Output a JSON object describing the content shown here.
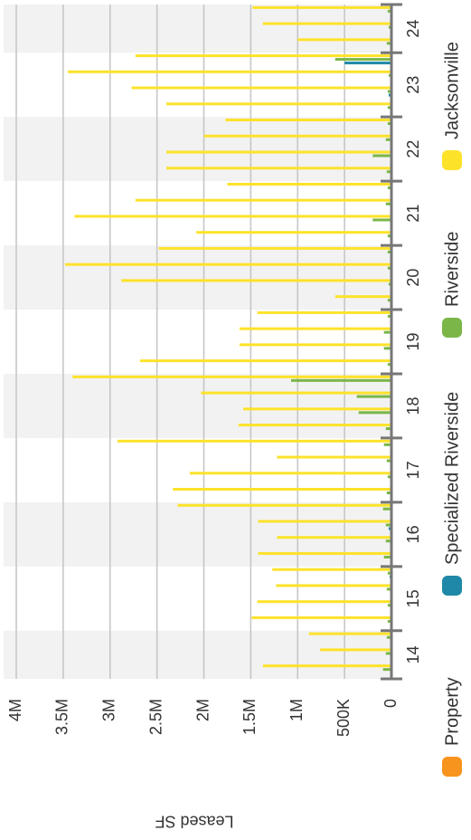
{
  "chart_data": {
    "type": "bar",
    "y_label": "Leased SF",
    "categories": [
      "14",
      "14",
      "14",
      "15",
      "15",
      "15",
      "15",
      "16",
      "16",
      "16",
      "16",
      "17",
      "17",
      "17",
      "17",
      "18",
      "18",
      "18",
      "18",
      "19",
      "19",
      "19",
      "19",
      "20",
      "20",
      "20",
      "20",
      "21",
      "21",
      "21",
      "21",
      "22",
      "22",
      "22",
      "22",
      "23",
      "23",
      "23",
      "23",
      "24",
      "24",
      "24"
    ],
    "series": [
      {
        "name": "Property",
        "color": "#f7941d",
        "values": [
          0,
          0,
          0,
          0,
          0,
          0,
          0,
          0,
          0,
          0,
          0,
          0,
          0,
          0,
          0,
          0,
          0,
          0,
          0,
          0,
          0,
          0,
          0,
          0,
          0,
          0,
          0,
          0,
          0,
          0,
          0,
          0,
          0,
          0,
          0,
          0,
          0,
          0,
          0,
          0,
          0,
          0
        ]
      },
      {
        "name": "Specialized Riverside",
        "color": "#1f88a8",
        "values": [
          0,
          0,
          0,
          0,
          0,
          0,
          20000,
          0,
          0,
          30000,
          0,
          0,
          0,
          0,
          0,
          0,
          0,
          0,
          0,
          0,
          0,
          0,
          0,
          0,
          0,
          0,
          0,
          0,
          0,
          0,
          0,
          0,
          0,
          0,
          0,
          0,
          30000,
          0,
          500000,
          0,
          0,
          0
        ]
      },
      {
        "name": "Riverside",
        "color": "#7ab648",
        "values": [
          90000,
          60000,
          50000,
          40000,
          40000,
          50000,
          40000,
          80000,
          60000,
          60000,
          90000,
          50000,
          40000,
          50000,
          80000,
          60000,
          350000,
          370000,
          1070000,
          40000,
          80000,
          80000,
          40000,
          40000,
          30000,
          40000,
          40000,
          40000,
          200000,
          60000,
          40000,
          50000,
          200000,
          60000,
          40000,
          40000,
          40000,
          30000,
          600000,
          50000,
          30000,
          40000
        ]
      },
      {
        "name": "Jacksonville",
        "color": "#fde22a",
        "values": [
          1370000,
          760000,
          880000,
          1490000,
          1430000,
          1230000,
          1270000,
          1420000,
          1220000,
          1420000,
          2280000,
          2330000,
          2150000,
          1220000,
          2920000,
          1630000,
          1580000,
          2030000,
          3400000,
          2680000,
          1620000,
          1620000,
          1430000,
          600000,
          2880000,
          3480000,
          2480000,
          2080000,
          3380000,
          2730000,
          1750000,
          2400000,
          2400000,
          2000000,
          1770000,
          2400000,
          2770000,
          3450000,
          2730000,
          1000000,
          1370000,
          1480000
        ]
      }
    ],
    "ylim": [
      0,
      4000000
    ],
    "yticks": [
      0,
      {
        "value": 500000,
        "label": "500K"
      },
      {
        "value": 1000000,
        "label": "1M"
      },
      {
        "value": 1500000,
        "label": "1.5M"
      },
      {
        "value": 2000000,
        "label": "2M"
      },
      {
        "value": 2500000,
        "label": "2.5M"
      },
      {
        "value": 3000000,
        "label": "3M"
      },
      {
        "value": 3500000,
        "label": "3.5M"
      },
      {
        "value": 4000000,
        "label": "4M"
      }
    ],
    "grid": true
  }
}
